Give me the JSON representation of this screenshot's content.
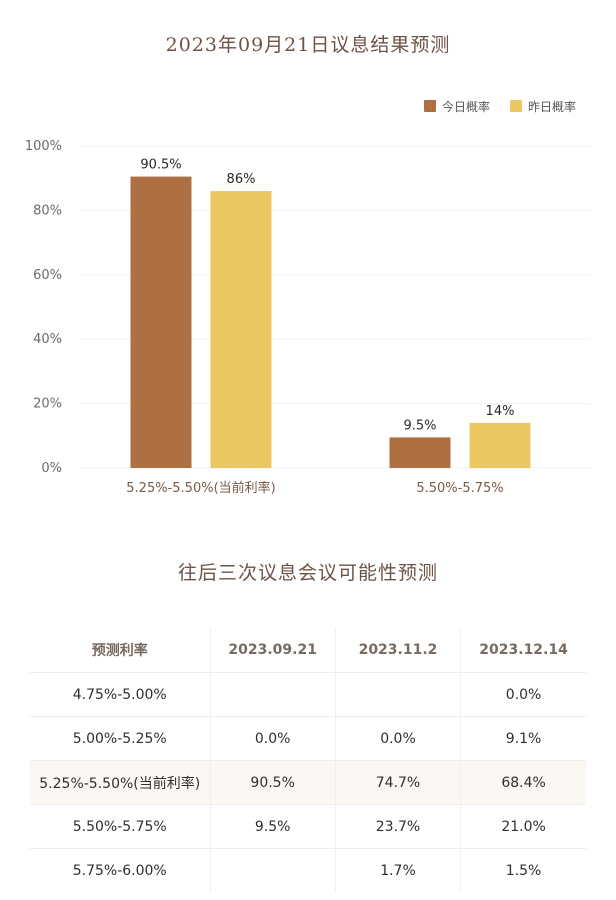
{
  "page": {
    "chart_title": "2023年09月21日议息结果预测",
    "table_title": "往后三次议息会议可能性预测"
  },
  "chart_data": {
    "type": "bar",
    "title": "2023年09月21日议息结果预测",
    "categories": [
      "5.25%-5.50%(当前利率)",
      "5.50%-5.75%"
    ],
    "series": [
      {
        "name": "今日概率",
        "values": [
          90.5,
          9.5
        ],
        "labels": [
          "90.5%",
          "9.5%"
        ],
        "color": "#af6f41"
      },
      {
        "name": "昨日概率",
        "values": [
          86,
          14
        ],
        "labels": [
          "86%",
          "14%"
        ],
        "color": "#ebc762"
      }
    ],
    "yticks": [
      "0%",
      "20%",
      "40%",
      "60%",
      "80%",
      "100%"
    ],
    "ylim": [
      0,
      100
    ],
    "legend_position": "top-right",
    "grid": true
  },
  "table": {
    "headers": [
      "预测利率",
      "2023.09.21",
      "2023.11.2",
      "2023.12.14"
    ],
    "rows": [
      [
        "4.75%-5.00%",
        "",
        "",
        "0.0%"
      ],
      [
        "5.00%-5.25%",
        "0.0%",
        "0.0%",
        "9.1%"
      ],
      [
        "5.25%-5.50%(当前利率)",
        "90.5%",
        "74.7%",
        "68.4%"
      ],
      [
        "5.50%-5.75%",
        "9.5%",
        "23.7%",
        "21.0%"
      ],
      [
        "5.75%-6.00%",
        "",
        "1.7%",
        "1.5%"
      ]
    ]
  }
}
